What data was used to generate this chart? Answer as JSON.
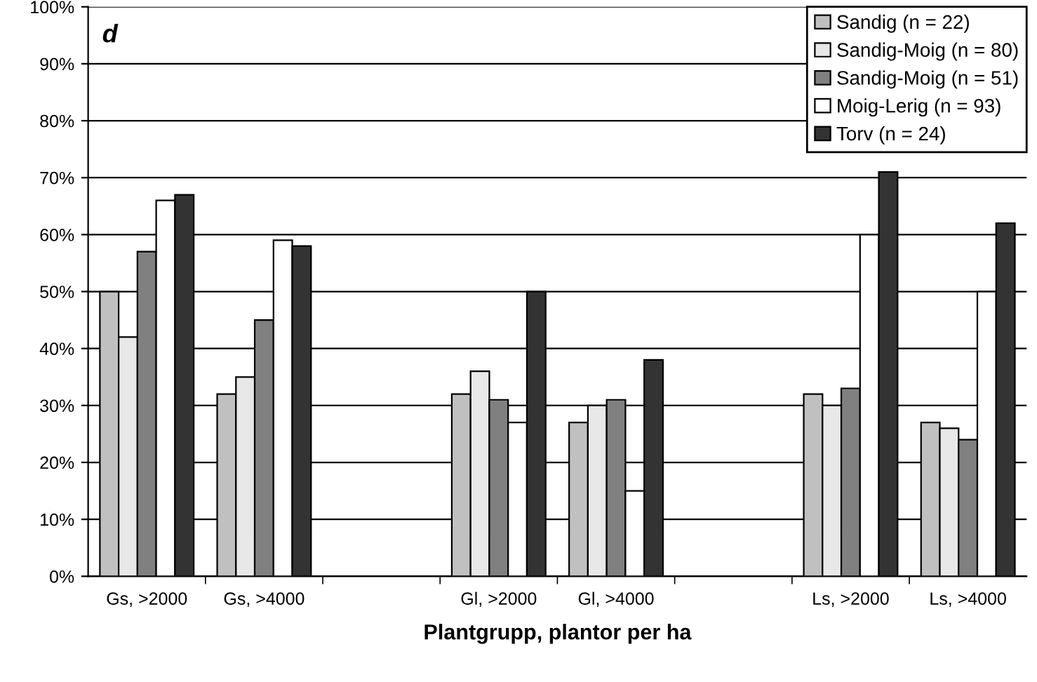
{
  "chart_data": {
    "type": "bar",
    "xlabel": "Plantgrupp, plantor per ha",
    "annotations": [
      "d"
    ],
    "categories": [
      "Gs, >2000",
      "Gs, >4000",
      null,
      "Gl, >2000",
      "Gl, >4000",
      null,
      "Ls, >2000",
      "Ls, >4000"
    ],
    "series": [
      {
        "name": "Sandig (n = 22)",
        "color": "#c0c0c0",
        "values": [
          50,
          32,
          null,
          32,
          27,
          null,
          32,
          27
        ]
      },
      {
        "name": "Sandig-Moig (n = 80)",
        "color": "#e8e8e8",
        "values": [
          42,
          35,
          null,
          36,
          30,
          null,
          30,
          26
        ]
      },
      {
        "name": "Sandig-Moig (n = 51)",
        "color": "#808080",
        "values": [
          57,
          45,
          null,
          31,
          31,
          null,
          33,
          24
        ]
      },
      {
        "name": "Moig-Lerig (n = 93)",
        "color": "#ffffff",
        "values": [
          66,
          59,
          null,
          27,
          15,
          null,
          60,
          50
        ]
      },
      {
        "name": "Torv (n = 24)",
        "color": "#333333",
        "values": [
          67,
          58,
          null,
          50,
          38,
          null,
          71,
          62
        ]
      }
    ],
    "ylim": [
      0,
      100
    ],
    "yticks": [
      {
        "value": 0,
        "label": "0%"
      },
      {
        "value": 10,
        "label": "10%"
      },
      {
        "value": 20,
        "label": "20%"
      },
      {
        "value": 30,
        "label": "30%"
      },
      {
        "value": 40,
        "label": "40%"
      },
      {
        "value": 50,
        "label": "50%"
      },
      {
        "value": 60,
        "label": "60%"
      },
      {
        "value": 70,
        "label": "70%"
      },
      {
        "value": 80,
        "label": "80%"
      },
      {
        "value": 90,
        "label": "90%"
      },
      {
        "value": 100,
        "label": "100%"
      }
    ],
    "grid": "y",
    "legend": "top right"
  }
}
